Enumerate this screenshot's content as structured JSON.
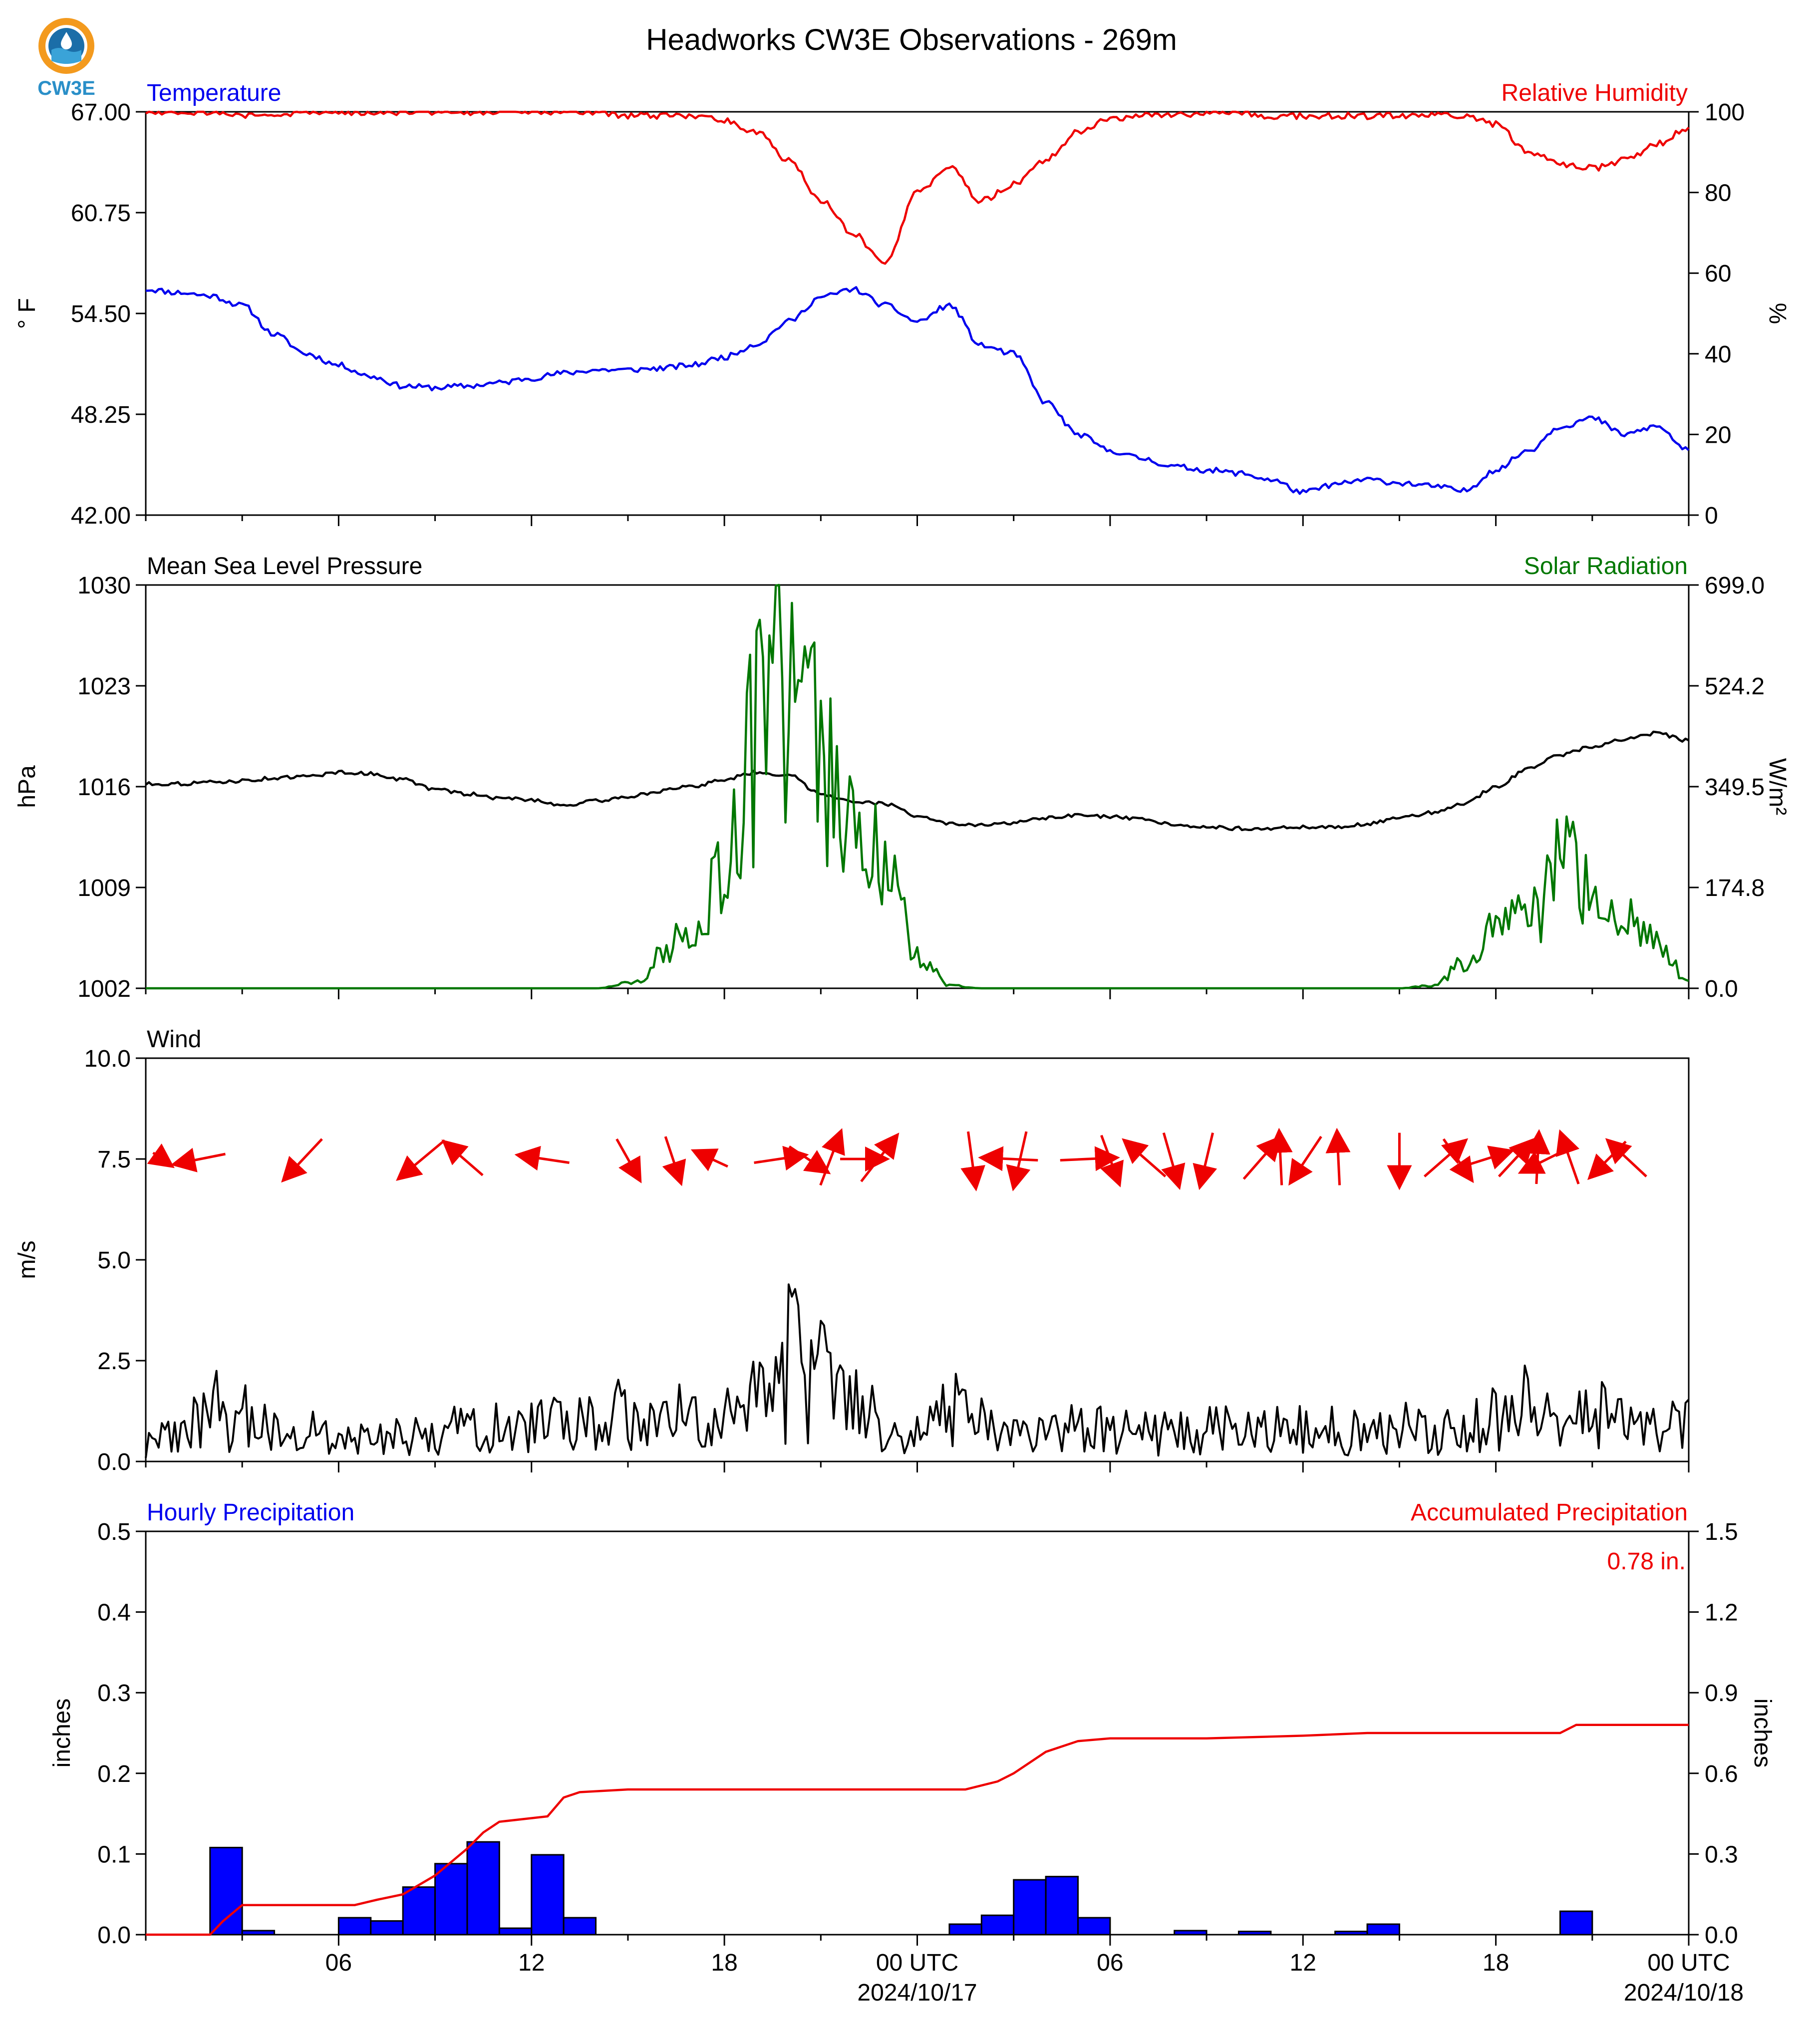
{
  "title": "Headworks CW3E Observations - 269m",
  "logo_text": "CW3E",
  "x_axis": {
    "ticks": [
      "06",
      "12",
      "18",
      "00 UTC",
      "06",
      "12",
      "18",
      "00 UTC"
    ],
    "date_labels": [
      "2024/10/17",
      "2024/10/18"
    ]
  },
  "chart_data": [
    {
      "type": "line",
      "left_label": "Temperature",
      "right_label": "Relative Humidity",
      "ylabel_left": "° F",
      "ylabel_right": "%",
      "ylim_left": [
        42.0,
        67.0
      ],
      "ylim_right": [
        0,
        100
      ],
      "yticks_left": [
        "42.00",
        "48.25",
        "54.50",
        "60.75",
        "67.00"
      ],
      "yticks_right": [
        "0",
        "20",
        "40",
        "60",
        "80",
        "100"
      ],
      "x_hours": [
        0,
        1,
        2,
        3,
        4,
        5,
        6,
        7,
        8,
        9,
        10,
        11,
        12,
        13,
        14,
        15,
        16,
        17,
        18,
        19,
        20,
        21,
        22,
        23,
        24,
        25,
        26,
        27,
        28,
        29,
        30,
        31,
        32,
        33,
        34,
        35,
        36,
        37,
        38,
        39,
        40,
        41,
        42,
        43,
        44,
        45,
        46,
        47,
        48
      ],
      "series": [
        {
          "name": "Temperature",
          "color": "#0000ee",
          "axis": "left",
          "values": [
            56.0,
            55.8,
            55.6,
            55.0,
            53.2,
            52.0,
            51.3,
            50.6,
            50.0,
            49.9,
            50.0,
            50.2,
            50.5,
            50.8,
            51.0,
            51.0,
            51.1,
            51.3,
            51.8,
            52.6,
            54.0,
            55.5,
            56.0,
            55.0,
            54.0,
            55.0,
            52.5,
            52.0,
            49.0,
            47.0,
            46.0,
            45.5,
            45.0,
            44.8,
            44.6,
            44.2,
            43.4,
            43.9,
            44.2,
            44.0,
            43.8,
            43.5,
            44.8,
            46.0,
            47.5,
            48.0,
            47.0,
            47.5,
            46.0
          ]
        },
        {
          "name": "Relative Humidity",
          "color": "#ee0000",
          "axis": "right",
          "values": [
            100,
            100,
            100,
            99,
            99,
            100,
            100,
            100,
            100,
            100,
            100,
            100,
            100,
            100,
            100,
            99,
            99,
            99,
            98,
            95,
            88,
            78,
            70,
            62,
            80,
            86,
            78,
            82,
            88,
            95,
            98,
            99,
            99,
            100,
            100,
            99,
            99,
            99,
            99,
            99,
            99,
            99,
            97,
            90,
            87,
            86,
            88,
            92,
            96
          ]
        }
      ]
    },
    {
      "type": "line",
      "left_label": "Mean Sea Level Pressure",
      "right_label": "Solar Radiation",
      "ylabel_left": "hPa",
      "ylabel_right": "W/m²",
      "ylim_left": [
        1002,
        1030
      ],
      "ylim_right": [
        0.0,
        699.0
      ],
      "yticks_left": [
        "1002",
        "1009",
        "1016",
        "1023",
        "1030"
      ],
      "yticks_right": [
        "0.0",
        "174.8",
        "349.5",
        "524.2",
        "699.0"
      ],
      "x_hours": [
        0,
        1,
        2,
        3,
        4,
        5,
        6,
        7,
        8,
        9,
        10,
        11,
        12,
        13,
        14,
        15,
        16,
        17,
        18,
        19,
        20,
        21,
        22,
        23,
        24,
        25,
        26,
        27,
        28,
        29,
        30,
        31,
        32,
        33,
        34,
        35,
        36,
        37,
        38,
        39,
        40,
        41,
        42,
        43,
        44,
        45,
        46,
        47,
        48
      ],
      "series": [
        {
          "name": "Mean Sea Level Pressure",
          "color": "#000000",
          "axis": "left",
          "values": [
            1016.2,
            1016.2,
            1016.3,
            1016.4,
            1016.6,
            1016.7,
            1017.0,
            1016.9,
            1016.5,
            1015.8,
            1015.5,
            1015.2,
            1015.1,
            1014.7,
            1015.0,
            1015.3,
            1015.7,
            1016.0,
            1016.5,
            1017.0,
            1016.8,
            1015.5,
            1015.0,
            1014.8,
            1014.0,
            1013.4,
            1013.3,
            1013.5,
            1013.8,
            1014.0,
            1013.9,
            1013.7,
            1013.4,
            1013.2,
            1013.1,
            1013.1,
            1013.2,
            1013.2,
            1013.4,
            1013.8,
            1014.2,
            1014.8,
            1016.0,
            1017.2,
            1018.2,
            1018.8,
            1019.3,
            1019.7,
            1019.2
          ]
        },
        {
          "name": "Solar Radiation",
          "color": "#007700",
          "axis": "right",
          "values": [
            0,
            0,
            0,
            0,
            0,
            0,
            0,
            0,
            0,
            0,
            0,
            0,
            0,
            0,
            0,
            10,
            60,
            120,
            220,
            520,
            600,
            480,
            300,
            240,
            60,
            5,
            0,
            0,
            0,
            0,
            0,
            0,
            0,
            0,
            0,
            0,
            0,
            0,
            0,
            0,
            5,
            50,
            100,
            170,
            260,
            180,
            140,
            90,
            10
          ]
        }
      ]
    },
    {
      "type": "line",
      "left_label": "Wind",
      "ylabel_left": "m/s",
      "ylim_left": [
        0.0,
        10.0
      ],
      "yticks_left": [
        "0.0",
        "2.5",
        "5.0",
        "7.5",
        "10.0"
      ],
      "x_hours": [
        0,
        1,
        2,
        3,
        4,
        5,
        6,
        7,
        8,
        9,
        10,
        11,
        12,
        13,
        14,
        15,
        16,
        17,
        18,
        19,
        20,
        21,
        22,
        23,
        24,
        25,
        26,
        27,
        28,
        29,
        30,
        31,
        32,
        33,
        34,
        35,
        36,
        37,
        38,
        39,
        40,
        41,
        42,
        43,
        44,
        45,
        46,
        47,
        48
      ],
      "series": [
        {
          "name": "Wind Speed",
          "color": "#000000",
          "axis": "left",
          "values": [
            0.5,
            0.7,
            1.5,
            1.2,
            0.9,
            0.8,
            0.6,
            0.6,
            0.7,
            0.8,
            0.9,
            1.0,
            1.0,
            1.1,
            1.2,
            1.3,
            1.4,
            1.2,
            1.1,
            2.2,
            2.8,
            2.2,
            1.6,
            1.0,
            0.8,
            1.4,
            1.0,
            0.7,
            0.8,
            0.9,
            0.9,
            0.8,
            0.9,
            0.9,
            0.9,
            0.9,
            0.9,
            0.9,
            1.0,
            1.0,
            0.9,
            0.8,
            1.3,
            1.5,
            1.3,
            1.4,
            1.0,
            0.9,
            1.0
          ]
        }
      ],
      "wind_vectors": [
        {
          "hour": 0.5,
          "u": 0.7,
          "v": -0.5
        },
        {
          "hour": 1.7,
          "u": -2.0,
          "v": -0.4
        },
        {
          "hour": 4.9,
          "u": -1.5,
          "v": -1.6
        },
        {
          "hour": 8.6,
          "u": -1.8,
          "v": -1.5
        },
        {
          "hour": 9.9,
          "u": -1.5,
          "v": 1.3
        },
        {
          "hour": 12.4,
          "u": -2.0,
          "v": 0.3
        },
        {
          "hour": 15.0,
          "u": 0.9,
          "v": -1.6
        },
        {
          "hour": 16.4,
          "u": 0.6,
          "v": -1.8
        },
        {
          "hour": 17.6,
          "u": -1.3,
          "v": 0.6
        },
        {
          "hour": 19.7,
          "u": 2.0,
          "v": 0.3
        },
        {
          "hour": 20.6,
          "u": 1.5,
          "v": -1.0
        },
        {
          "hour": 21.3,
          "u": 0.8,
          "v": 2.1
        },
        {
          "hour": 22.3,
          "u": 1.8,
          "v": 0.0
        },
        {
          "hour": 22.8,
          "u": 1.4,
          "v": 1.8
        },
        {
          "hour": 25.7,
          "u": 0.3,
          "v": -2.2
        },
        {
          "hour": 26.9,
          "u": -2.2,
          "v": 0.1
        },
        {
          "hour": 27.2,
          "u": -0.5,
          "v": -2.2
        },
        {
          "hour": 29.3,
          "u": 2.2,
          "v": 0.1
        },
        {
          "hour": 30.0,
          "u": 0.7,
          "v": -1.9
        },
        {
          "hour": 31.1,
          "u": -1.6,
          "v": 1.4
        },
        {
          "hour": 31.9,
          "u": 0.6,
          "v": -2.1
        },
        {
          "hour": 33.0,
          "u": -0.5,
          "v": -2.1
        },
        {
          "hour": 34.7,
          "u": 1.4,
          "v": 1.6
        },
        {
          "hour": 35.3,
          "u": -0.1,
          "v": 2.1
        },
        {
          "hour": 36.1,
          "u": -1.2,
          "v": -1.8
        },
        {
          "hour": 37.1,
          "u": -0.1,
          "v": 2.1
        },
        {
          "hour": 39.0,
          "u": 0.0,
          "v": -2.1
        },
        {
          "hour": 40.4,
          "u": 1.6,
          "v": 1.4
        },
        {
          "hour": 40.8,
          "u": 1.1,
          "v": -1.6
        },
        {
          "hour": 41.7,
          "u": 1.9,
          "v": 0.6
        },
        {
          "hour": 42.6,
          "u": 1.3,
          "v": 1.4
        },
        {
          "hour": 43.3,
          "u": 0.1,
          "v": 2.0
        },
        {
          "hour": 43.6,
          "u": -2.0,
          "v": -1.0
        },
        {
          "hour": 44.3,
          "u": -0.7,
          "v": 2.0
        },
        {
          "hour": 45.5,
          "u": -1.4,
          "v": -1.4
        },
        {
          "hour": 46.1,
          "u": -1.5,
          "v": 1.4
        }
      ]
    },
    {
      "type": "bar",
      "left_label": "Hourly Precipitation",
      "right_label": "Accumulated Precipitation",
      "ylabel_left": "inches",
      "ylabel_right": "inches",
      "ylim_left": [
        0.0,
        0.5
      ],
      "ylim_right": [
        0.0,
        1.5
      ],
      "yticks_left": [
        "0.0",
        "0.1",
        "0.2",
        "0.3",
        "0.4",
        "0.5"
      ],
      "yticks_right": [
        "0.0",
        "0.3",
        "0.6",
        "0.9",
        "1.2",
        "1.5"
      ],
      "total_label": "0.78 in.",
      "hourly_bars": [
        {
          "hour": 2,
          "value": 0.108
        },
        {
          "hour": 3,
          "value": 0.005
        },
        {
          "hour": 6,
          "value": 0.021
        },
        {
          "hour": 7,
          "value": 0.017
        },
        {
          "hour": 8,
          "value": 0.059
        },
        {
          "hour": 9,
          "value": 0.088
        },
        {
          "hour": 10,
          "value": 0.115
        },
        {
          "hour": 11,
          "value": 0.008
        },
        {
          "hour": 12,
          "value": 0.099
        },
        {
          "hour": 13,
          "value": 0.021
        },
        {
          "hour": 25,
          "value": 0.013
        },
        {
          "hour": 26,
          "value": 0.024
        },
        {
          "hour": 27,
          "value": 0.068
        },
        {
          "hour": 28,
          "value": 0.072
        },
        {
          "hour": 29,
          "value": 0.021
        },
        {
          "hour": 32,
          "value": 0.005
        },
        {
          "hour": 34,
          "value": 0.004
        },
        {
          "hour": 37,
          "value": 0.004
        },
        {
          "hour": 38,
          "value": 0.013
        },
        {
          "hour": 44,
          "value": 0.029
        }
      ],
      "accumulated": {
        "x_hours": [
          0,
          2.0,
          2.4,
          3.0,
          6.5,
          7.2,
          8.0,
          9.0,
          10.0,
          10.5,
          11.0,
          12.5,
          13.0,
          13.5,
          15.0,
          20.0,
          24.0,
          25.5,
          26.5,
          27.0,
          28.0,
          29.0,
          30.0,
          33.0,
          36.0,
          38.0,
          44.0,
          44.5,
          48.0
        ],
        "values": [
          0.0,
          0.0,
          0.05,
          0.11,
          0.11,
          0.13,
          0.15,
          0.22,
          0.32,
          0.38,
          0.42,
          0.44,
          0.51,
          0.53,
          0.54,
          0.54,
          0.54,
          0.54,
          0.57,
          0.6,
          0.68,
          0.72,
          0.73,
          0.73,
          0.74,
          0.75,
          0.75,
          0.78,
          0.78
        ],
        "color": "#ee0000"
      }
    }
  ]
}
